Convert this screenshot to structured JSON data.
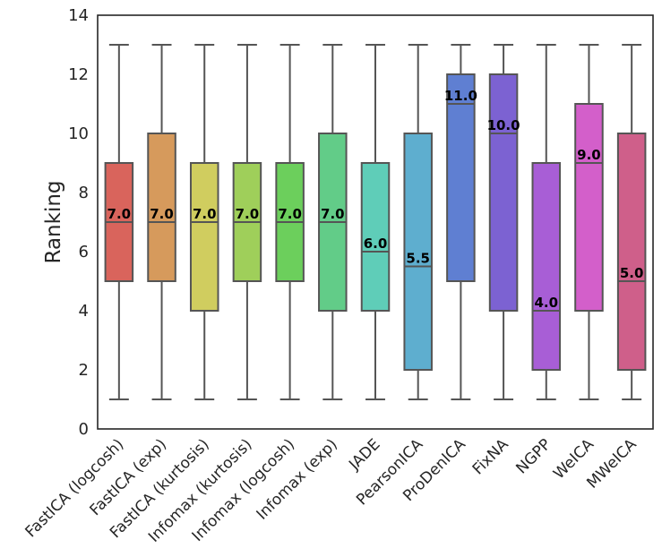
{
  "chart_data": {
    "type": "box",
    "title": "",
    "xlabel": "",
    "ylabel": "Ranking",
    "ylim": [
      0,
      14
    ],
    "yticks": [
      0,
      2,
      4,
      6,
      8,
      10,
      12,
      14
    ],
    "grid": false,
    "categories": [
      "FastICA (logcosh)",
      "FastICA (exp)",
      "FastICA (kurtosis)",
      "Infomax (kurtosis)",
      "Infomax (logcosh)",
      "Infomax (exp)",
      "JADE",
      "PearsonICA",
      "ProDenICA",
      "FixNA",
      "NGPP",
      "WeICA",
      "MWeICA"
    ],
    "boxes": [
      {
        "whisker_low": 1,
        "q1": 5,
        "median": 7,
        "q3": 9,
        "whisker_high": 13,
        "median_label": "7.0",
        "color": "#d9645c"
      },
      {
        "whisker_low": 1,
        "q1": 5,
        "median": 7,
        "q3": 10,
        "whisker_high": 13,
        "median_label": "7.0",
        "color": "#d69a5c"
      },
      {
        "whisker_low": 1,
        "q1": 4,
        "median": 7,
        "q3": 9,
        "whisker_high": 13,
        "median_label": "7.0",
        "color": "#d0cd5f"
      },
      {
        "whisker_low": 1,
        "q1": 5,
        "median": 7,
        "q3": 9,
        "whisker_high": 13,
        "median_label": "7.0",
        "color": "#9fcf5a"
      },
      {
        "whisker_low": 1,
        "q1": 5,
        "median": 7,
        "q3": 9,
        "whisker_high": 13,
        "median_label": "7.0",
        "color": "#6ccf5c"
      },
      {
        "whisker_low": 1,
        "q1": 4,
        "median": 7,
        "q3": 10,
        "whisker_high": 13,
        "median_label": "7.0",
        "color": "#62cc88"
      },
      {
        "whisker_low": 1,
        "q1": 4,
        "median": 6,
        "q3": 9,
        "whisker_high": 13,
        "median_label": "6.0",
        "color": "#5fcdb8"
      },
      {
        "whisker_low": 1,
        "q1": 2,
        "median": 5.5,
        "q3": 10,
        "whisker_high": 13,
        "median_label": "5.5",
        "color": "#5eaecf"
      },
      {
        "whisker_low": 1,
        "q1": 5,
        "median": 11,
        "q3": 12,
        "whisker_high": 13,
        "median_label": "11.0",
        "color": "#5f7fd2"
      },
      {
        "whisker_low": 1,
        "q1": 4,
        "median": 10,
        "q3": 12,
        "whisker_high": 13,
        "median_label": "10.0",
        "color": "#7c62d2"
      },
      {
        "whisker_low": 1,
        "q1": 2,
        "median": 4,
        "q3": 9,
        "whisker_high": 13,
        "median_label": "4.0",
        "color": "#a85ed6"
      },
      {
        "whisker_low": 1,
        "q1": 4,
        "median": 9,
        "q3": 11,
        "whisker_high": 13,
        "median_label": "9.0",
        "color": "#d35fca"
      },
      {
        "whisker_low": 1,
        "q1": 2,
        "median": 5,
        "q3": 10,
        "whisker_high": 13,
        "median_label": "5.0",
        "color": "#cf5f8a"
      }
    ],
    "colors": {
      "lines": "#555555",
      "frame": "#262626"
    }
  }
}
